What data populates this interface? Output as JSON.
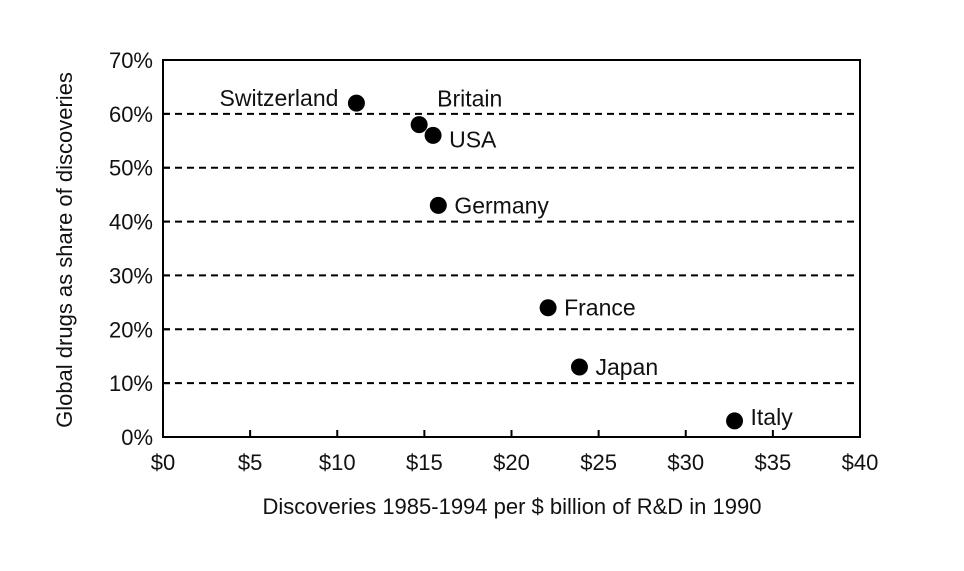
{
  "chart_data": {
    "type": "scatter",
    "title": "",
    "xlabel": "Discoveries 1985-1994 per $ billion of R&D in 1990",
    "ylabel": "Global drugs as share of discoveries",
    "xlim": [
      0,
      40
    ],
    "ylim": [
      0,
      70
    ],
    "x_ticks": [
      "$0",
      "$5",
      "$10",
      "$15",
      "$20",
      "$25",
      "$30",
      "$35",
      "$40"
    ],
    "y_ticks": [
      "0%",
      "10%",
      "20%",
      "30%",
      "40%",
      "50%",
      "60%",
      "70%"
    ],
    "grid": "horizontal dashed",
    "points": [
      {
        "label": "Switzerland",
        "x": 11.1,
        "y": 62,
        "label_side": "left"
      },
      {
        "label": "Britain",
        "x": 14.7,
        "y": 58,
        "label_side": "above-right"
      },
      {
        "label": "USA",
        "x": 15.5,
        "y": 56,
        "label_side": "right"
      },
      {
        "label": "Germany",
        "x": 15.8,
        "y": 43,
        "label_side": "right"
      },
      {
        "label": "France",
        "x": 22.1,
        "y": 24,
        "label_side": "right"
      },
      {
        "label": "Japan",
        "x": 23.9,
        "y": 13,
        "label_side": "right"
      },
      {
        "label": "Italy",
        "x": 32.8,
        "y": 3,
        "label_side": "above-right"
      }
    ],
    "marker_color": "#000000"
  }
}
